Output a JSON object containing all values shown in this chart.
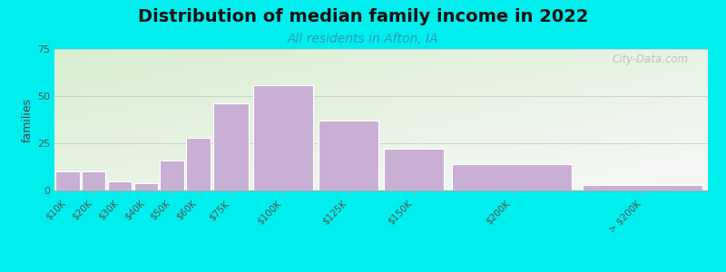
{
  "title": "Distribution of median family income in 2022",
  "subtitle": "All residents in Afton, IA",
  "ylabel": "families",
  "bg_color": "#00EEEE",
  "plot_bg_left": "#d8eed0",
  "plot_bg_right": "#f8f8f8",
  "bar_color": "#c9afd4",
  "bar_edge_color": "#ffffff",
  "categories": [
    "$10K",
    "$20K",
    "$30K",
    "$40K",
    "$50K",
    "$60K",
    "$75K",
    "$100K",
    "$125K",
    "$150K",
    "$200K",
    "> $200K"
  ],
  "bin_edges": [
    0,
    10,
    20,
    30,
    40,
    50,
    60,
    75,
    100,
    125,
    150,
    200,
    250
  ],
  "values": [
    10,
    10,
    5,
    4,
    16,
    28,
    46,
    56,
    37,
    22,
    14,
    3
  ],
  "ylim": [
    0,
    75
  ],
  "yticks": [
    0,
    25,
    50,
    75
  ],
  "title_fontsize": 14,
  "subtitle_fontsize": 10,
  "watermark": "City-Data.com",
  "grid_color": "#cccccc",
  "subtitle_color": "#3399bb",
  "tick_label_color": "#555555"
}
